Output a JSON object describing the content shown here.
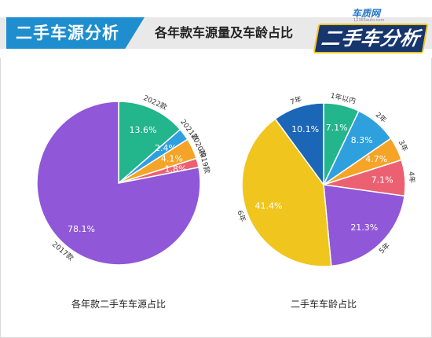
{
  "banner": {
    "title": "二手车源分析",
    "subtitle": "各年款车源量及车龄占比",
    "logo_brand": "车质网",
    "logo_site": "12365auto.com",
    "logo_title": "二手车分析",
    "colors": {
      "blue": "#1e8ecf",
      "navy": "#17366e",
      "gold": "#f4c21f"
    }
  },
  "chart_data": [
    {
      "type": "pie",
      "title": "各年款二手车车源占比",
      "series": [
        {
          "label": "2022款",
          "value": 13.6,
          "value_label": "13.6%",
          "color": "#23b58c"
        },
        {
          "label": "2021款",
          "value": 2.4,
          "value_label": "2.4%",
          "color": "#2fa0de"
        },
        {
          "label": "2020款",
          "value": 4.1,
          "value_label": "4.1%",
          "color": "#f5a428"
        },
        {
          "label": "2019款",
          "value": 1.8,
          "value_label": "1.8%",
          "color": "#ec6171"
        },
        {
          "label": "2017款",
          "value": 78.1,
          "value_label": "78.1%",
          "color": "#9057d8"
        }
      ]
    },
    {
      "type": "pie",
      "title": "二手车车龄占比",
      "series": [
        {
          "label": "1年以内",
          "value": 7.1,
          "value_label": "7.1%",
          "color": "#23b58c"
        },
        {
          "label": "2年",
          "value": 8.3,
          "value_label": "8.3%",
          "color": "#2fa0de"
        },
        {
          "label": "3年",
          "value": 4.7,
          "value_label": "4.7%",
          "color": "#f5a428"
        },
        {
          "label": "4年",
          "value": 7.1,
          "value_label": "7.1%",
          "color": "#ec6171"
        },
        {
          "label": "5年",
          "value": 21.3,
          "value_label": "21.3%",
          "color": "#9057d8"
        },
        {
          "label": "6年",
          "value": 41.4,
          "value_label": "41.4%",
          "color": "#f0c51e"
        },
        {
          "label": "7年",
          "value": 10.1,
          "value_label": "10.1%",
          "color": "#1c66b8"
        }
      ]
    }
  ]
}
